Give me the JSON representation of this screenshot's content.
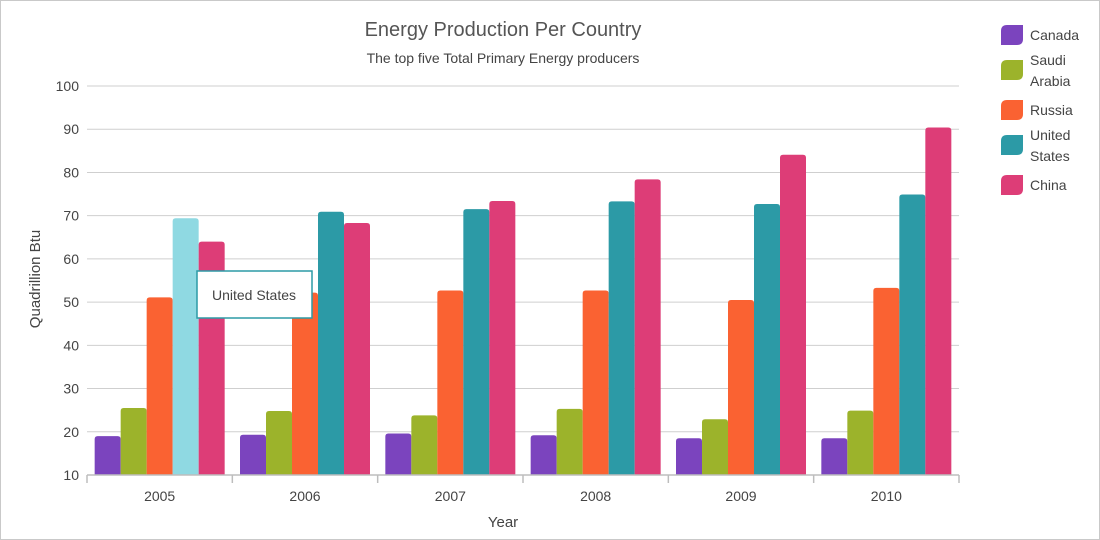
{
  "chart_data": {
    "type": "bar",
    "title": "Energy Production Per Country",
    "subtitle": "The top five Total Primary Energy producers",
    "xlabel": "Year",
    "ylabel": "Quadrillion Btu",
    "ylim": [
      10,
      100
    ],
    "yticks": [
      10,
      20,
      30,
      40,
      50,
      60,
      70,
      80,
      90,
      100
    ],
    "grid": true,
    "legend_position": "right",
    "categories": [
      "2005",
      "2006",
      "2007",
      "2008",
      "2009",
      "2010"
    ],
    "series": [
      {
        "name": "Canada",
        "color": "#7b44be",
        "values": [
          19.0,
          19.3,
          19.6,
          19.2,
          18.5,
          18.5
        ]
      },
      {
        "name": "Saudi Arabia",
        "color": "#9cb32b",
        "values": [
          25.5,
          24.8,
          23.8,
          25.3,
          22.9,
          24.9
        ]
      },
      {
        "name": "Russia",
        "color": "#fa6232",
        "values": [
          51.1,
          52.2,
          52.7,
          52.7,
          50.5,
          53.3
        ]
      },
      {
        "name": "United States",
        "color": "#2c9aa6",
        "values": [
          69.4,
          70.9,
          71.5,
          73.3,
          72.7,
          74.9
        ]
      },
      {
        "name": "China",
        "color": "#dd3d77",
        "values": [
          64.0,
          68.3,
          73.4,
          78.4,
          84.1,
          90.4
        ]
      }
    ],
    "highlight": {
      "series_index": 3,
      "category_index": 0,
      "color": "#8fd9e2"
    },
    "tooltip": {
      "text": "United States"
    }
  }
}
